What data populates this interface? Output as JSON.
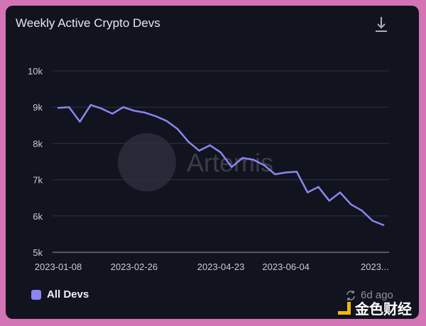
{
  "title": "Weekly Active Crypto Devs",
  "download_icon": "download-icon",
  "updated": "6d ago",
  "refresh_icon": "refresh-icon",
  "watermark_brand": "Artemis",
  "corner_watermark": "金色财经",
  "colors": {
    "line": "#8b86f0",
    "background": "#11141f",
    "page": "#d374b5"
  },
  "chart_data": {
    "type": "line",
    "title": "Weekly Active Crypto Devs",
    "xlabel": "",
    "ylabel": "",
    "ylim": [
      5000,
      10000
    ],
    "yticks": [
      "5k",
      "6k",
      "7k",
      "8k",
      "9k",
      "10k"
    ],
    "xtick_labels": [
      "2023-01-08",
      "2023-02-26",
      "2023-04-23",
      "2023-06-04",
      "2023..."
    ],
    "grid": true,
    "legend": "bottom-left",
    "x": [
      "2023-01-08",
      "2023-01-15",
      "2023-01-22",
      "2023-01-29",
      "2023-02-05",
      "2023-02-12",
      "2023-02-19",
      "2023-02-26",
      "2023-03-05",
      "2023-03-12",
      "2023-03-19",
      "2023-03-26",
      "2023-04-02",
      "2023-04-09",
      "2023-04-16",
      "2023-04-23",
      "2023-04-30",
      "2023-05-07",
      "2023-05-14",
      "2023-05-21",
      "2023-05-28",
      "2023-06-04",
      "2023-06-11",
      "2023-06-18",
      "2023-06-25",
      "2023-07-02",
      "2023-07-09",
      "2023-07-16",
      "2023-07-23",
      "2023-07-30",
      "2023-08-06"
    ],
    "series": [
      {
        "name": "All Devs",
        "values": [
          8980,
          9000,
          8600,
          9060,
          8960,
          8820,
          9000,
          8900,
          8850,
          8750,
          8620,
          8400,
          8050,
          7800,
          7950,
          7750,
          7350,
          7600,
          7550,
          7400,
          7150,
          7200,
          7220,
          6650,
          6800,
          6420,
          6650,
          6320,
          6150,
          5870,
          5750
        ]
      }
    ]
  }
}
